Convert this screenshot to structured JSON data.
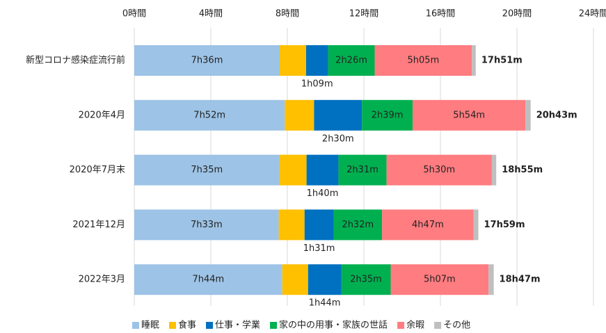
{
  "chart_data": {
    "type": "stacked-bar-horizontal",
    "categories": [
      "新型コロナ感染症流行前",
      "2020年4月",
      "2020年7月末",
      "2021年12月",
      "2022年3月"
    ],
    "xlim": [
      0,
      24
    ],
    "xticks": [
      {
        "value": 0,
        "label": "0時間"
      },
      {
        "value": 4,
        "label": "4時間"
      },
      {
        "value": 8,
        "label": "8時間"
      },
      {
        "value": 12,
        "label": "12時間"
      },
      {
        "value": 16,
        "label": "16時間"
      },
      {
        "value": 20,
        "label": "20時間"
      },
      {
        "value": 24,
        "label": "24時間"
      }
    ],
    "grid": true,
    "legend": "bottom",
    "series": [
      {
        "name": "睡眠",
        "color": "#9dc3e6",
        "values": [
          7.6,
          7.8667,
          7.5833,
          7.55,
          7.7333
        ],
        "value_labels": [
          "7h36m",
          "7h52m",
          "7h35m",
          "7h33m",
          "7h44m"
        ]
      },
      {
        "name": "食事",
        "color": "#ffc000",
        "values": [
          1.38,
          1.53,
          1.42,
          1.35,
          1.35
        ]
      },
      {
        "name": "仕事・学業",
        "color": "#0070c0",
        "values": [
          1.15,
          2.5,
          1.6667,
          1.5167,
          1.7333
        ],
        "value_labels": [
          "1h09m",
          "2h30m",
          "1h40m",
          "1h31m",
          "1h44m"
        ]
      },
      {
        "name": "家の中の用事・家族の世話",
        "color": "#00b050",
        "values": [
          2.4333,
          2.65,
          2.5167,
          2.5333,
          2.5833
        ],
        "value_labels": [
          "2h26m",
          "2h39m",
          "2h31m",
          "2h32m",
          "2h35m"
        ]
      },
      {
        "name": "余暇",
        "color": "#ff7c80",
        "values": [
          5.0833,
          5.9,
          5.5,
          4.7833,
          5.1167
        ],
        "value_labels": [
          "5h05m",
          "5h54m",
          "5h30m",
          "4h47m",
          "5h07m"
        ]
      },
      {
        "name": "その他",
        "color": "#bfbfbf",
        "values": [
          0.2,
          0.27,
          0.23,
          0.25,
          0.27
        ]
      }
    ],
    "totals": {
      "values": [
        17.85,
        20.7167,
        18.9167,
        17.9833,
        18.7833
      ],
      "value_labels": [
        "17h51m",
        "20h43m",
        "18h55m",
        "17h59m",
        "18h47m"
      ]
    }
  }
}
